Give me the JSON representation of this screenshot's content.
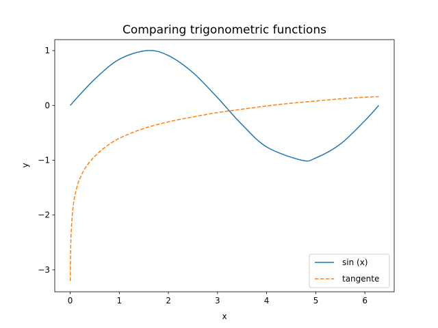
{
  "chart_data": {
    "type": "line",
    "title": "Comparing trigonometric functions",
    "xlabel": "x",
    "ylabel": "y",
    "xlim": [
      -0.314,
      6.597
    ],
    "ylim": [
      -3.4,
      1.2
    ],
    "xticks": [
      0,
      1,
      2,
      3,
      4,
      5,
      6
    ],
    "xtick_labels": [
      "0",
      "1",
      "2",
      "3",
      "4",
      "5",
      "6"
    ],
    "yticks": [
      1,
      0,
      -1,
      -2,
      -3
    ],
    "ytick_labels": [
      "1",
      "0",
      "−1",
      "−2",
      "−3"
    ],
    "legend_position": "lower-right",
    "series": [
      {
        "name": "sin (x)",
        "color": "#1f77b4",
        "style": "solid",
        "x": [
          0,
          0.5,
          1.0,
          1.5708,
          2.0,
          2.5,
          3.0,
          3.1416,
          3.5,
          4.0,
          4.7124,
          5.0,
          5.5,
          6.0,
          6.2832
        ],
        "y": [
          0,
          0.479,
          0.841,
          1.0,
          0.909,
          0.598,
          0.141,
          0.0,
          -0.351,
          -0.757,
          -1.0,
          -0.959,
          -0.706,
          -0.279,
          0
        ]
      },
      {
        "name": "tangente",
        "color": "#ff7f0e",
        "style": "dashed",
        "x": [
          0.0025,
          0.005,
          0.01,
          0.02,
          0.04,
          0.07,
          0.1,
          0.15,
          0.2,
          0.3,
          0.4,
          0.5,
          0.7,
          1.0,
          1.5,
          2.0,
          2.5,
          3.0,
          3.5,
          4.0,
          4.5,
          5.0,
          5.5,
          6.0,
          6.2832
        ],
        "y": [
          -3.2,
          -2.91,
          -2.63,
          -2.33,
          -2.03,
          -1.78,
          -1.63,
          -1.45,
          -1.33,
          -1.15,
          -1.03,
          -0.93,
          -0.77,
          -0.6,
          -0.42,
          -0.3,
          -0.21,
          -0.13,
          -0.07,
          -0.01,
          0.04,
          0.08,
          0.12,
          0.15,
          0.16
        ]
      }
    ]
  }
}
